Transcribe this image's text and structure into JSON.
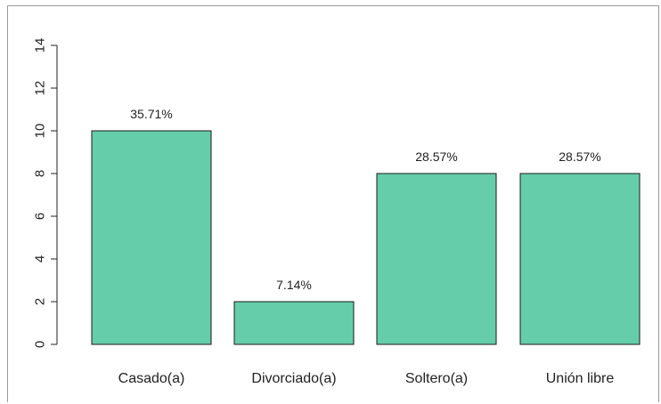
{
  "chart_data": {
    "type": "bar",
    "title": "",
    "xlabel": "",
    "ylabel": "",
    "categories": [
      "Casado(a)",
      "Divorciado(a)",
      "Soltero(a)",
      "Unión libre"
    ],
    "values": [
      10,
      2,
      8,
      8
    ],
    "data_labels": [
      "35.71%",
      "7.14%",
      "28.57%",
      "28.57%"
    ],
    "ylim": [
      0,
      14
    ],
    "yticks": [
      0,
      2,
      4,
      6,
      8,
      10,
      12,
      14
    ],
    "ytick_labels": [
      "0",
      "2",
      "4",
      "6",
      "8",
      "10",
      "12",
      "14"
    ],
    "grid": false,
    "bar_color": "#66cdaa",
    "bar_edge_color": "#1a1a1a"
  }
}
